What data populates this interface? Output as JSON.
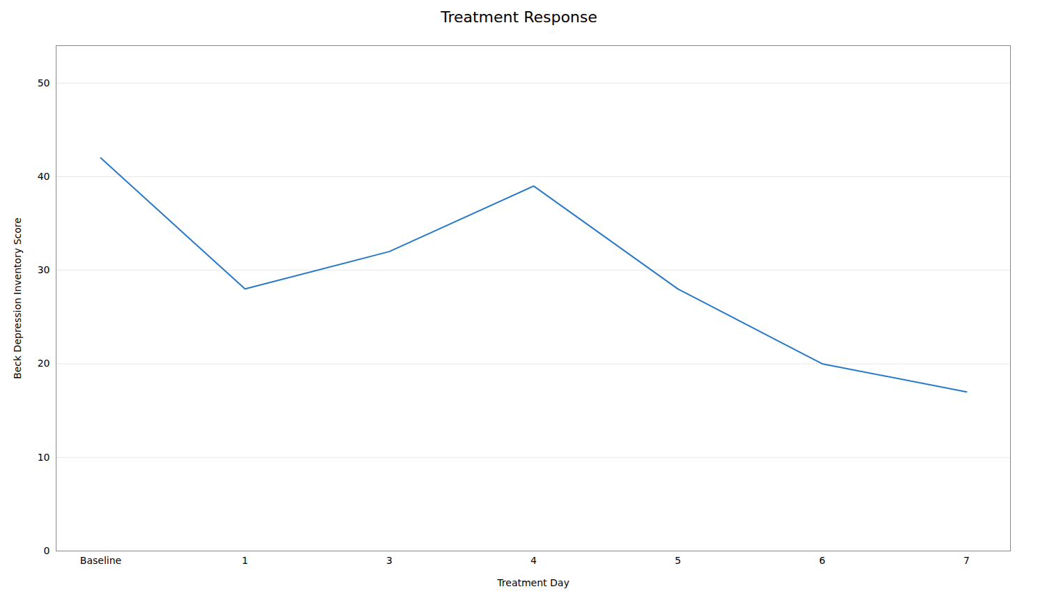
{
  "chart_data": {
    "type": "line",
    "title": "Treatment Response",
    "xlabel": "Treatment Day",
    "ylabel": "Beck Depression Inventory Score",
    "categories": [
      "Baseline",
      "1",
      "3",
      "4",
      "5",
      "6",
      "7"
    ],
    "values": [
      42,
      28,
      32,
      39,
      28,
      20,
      17
    ],
    "color": "#2878c8",
    "ylim": [
      0,
      54
    ],
    "yticks": [
      0,
      10,
      20,
      30,
      40,
      50
    ],
    "grid": true
  }
}
